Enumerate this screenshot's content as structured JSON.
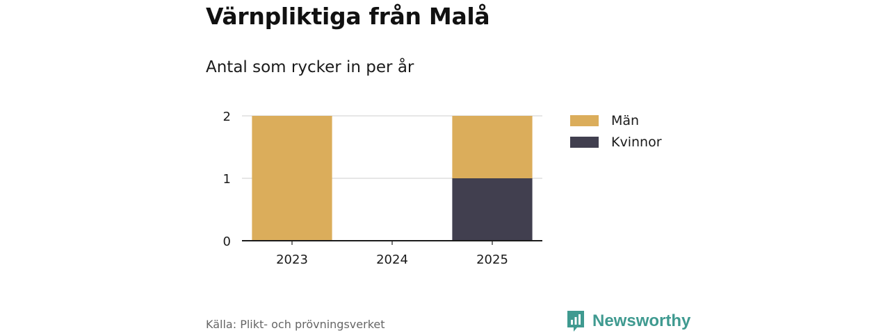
{
  "header": {
    "title": "Värnpliktiga från Malå",
    "subtitle": "Antal som rycker in per år"
  },
  "chart_data": {
    "type": "bar",
    "stacked": true,
    "categories": [
      "2023",
      "2024",
      "2025"
    ],
    "series": [
      {
        "name": "Kvinnor",
        "values": [
          0,
          0,
          1
        ],
        "color": "#413f4f"
      },
      {
        "name": "Män",
        "values": [
          2,
          0,
          1
        ],
        "color": "#dbad5b"
      }
    ],
    "yticks": [
      0,
      1,
      2
    ],
    "ylim": [
      0,
      2
    ],
    "grid": true,
    "legend_position": "right"
  },
  "legend": {
    "items": [
      {
        "label": "Män",
        "color": "#dbad5b"
      },
      {
        "label": "Kvinnor",
        "color": "#413f4f"
      }
    ]
  },
  "footer": {
    "source": "Källa: Plikt- och prövningsverket",
    "brand": "Newsworthy",
    "brand_color": "#3f9a90",
    "brand_icon": "newsworthy-logo-icon"
  }
}
